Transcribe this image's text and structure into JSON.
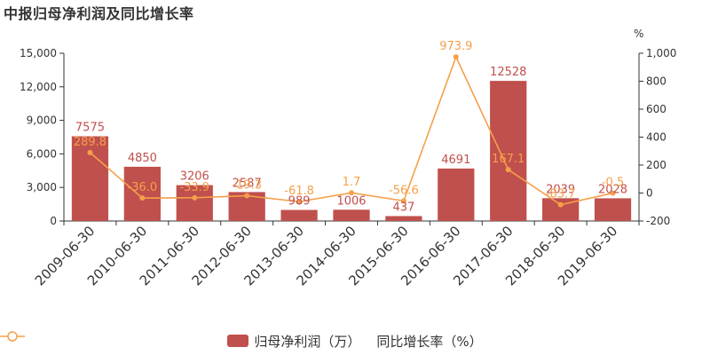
{
  "page_title": "中报归母净利润及同比增长率",
  "chart_data": {
    "type": "bar",
    "title": "中报归母净利润及同比增长率",
    "categories": [
      "2009-06-30",
      "2010-06-30",
      "2011-06-30",
      "2012-06-30",
      "2013-06-30",
      "2014-06-30",
      "2015-06-30",
      "2016-06-30",
      "2017-06-30",
      "2018-06-30",
      "2019-06-30"
    ],
    "series": [
      {
        "name": "归母净利润（万）",
        "type": "bar",
        "axis": "left",
        "color": "#c0504d",
        "values": [
          7575,
          4850,
          3206,
          2587,
          989,
          1006,
          437,
          4691,
          12528,
          2039,
          2028
        ],
        "labels": [
          "7575",
          "4850",
          "3206",
          "2587",
          "989",
          "1006",
          "437",
          "4691",
          "12528",
          "2039",
          "2028"
        ]
      },
      {
        "name": "同比增长率（%）",
        "type": "line",
        "axis": "right",
        "color": "#f5a04a",
        "values": [
          289.8,
          -36.0,
          -33.9,
          -19.3,
          -61.8,
          1.7,
          -56.6,
          973.9,
          167.1,
          -83.7,
          -0.5
        ],
        "labels": [
          "289.8",
          "-36.0",
          "-33.9",
          "-19.3",
          "-61.8",
          "1.7",
          "-56.6",
          "973.9",
          "167.1",
          "-83.7",
          "-0.5"
        ]
      }
    ],
    "y_left": {
      "min": 0,
      "max": 15000,
      "ticks": [
        "0",
        "3,000",
        "6,000",
        "9,000",
        "12,000",
        "15,000"
      ]
    },
    "y_right": {
      "min": -200,
      "max": 1000,
      "unit": "%",
      "ticks": [
        "-200",
        "0",
        "200",
        "400",
        "600",
        "800",
        "1,000"
      ]
    },
    "grid": false,
    "legend": "bottom-center",
    "legend_labels": {
      "bar": "归母净利润（万）",
      "line": "同比增长率（%）"
    }
  }
}
